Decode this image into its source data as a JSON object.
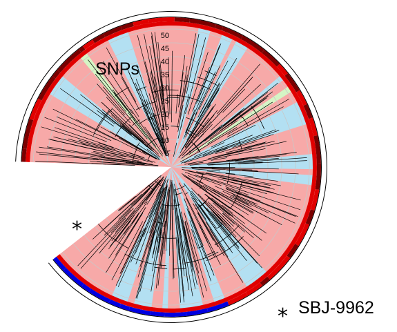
{
  "figure": {
    "scale_label": "SNPs",
    "scale_ticks": [
      "5",
      "10",
      "15",
      "20",
      "25",
      "30",
      "35",
      "40",
      "45",
      "50"
    ],
    "marker_symbol": "*",
    "marker_strain": "SBJ-9962"
  },
  "colors": {
    "clade_a_wedge": "#f7a9a8",
    "clade_b_wedge": "#b3e0f2",
    "clade_c_wedge": "#d5f5c5",
    "ring_red": "#e00000",
    "ring_dark_red": "#7a0000",
    "ring_blue": "#0000e0",
    "grid": "#c8c8c8",
    "branch": "#000000"
  }
}
